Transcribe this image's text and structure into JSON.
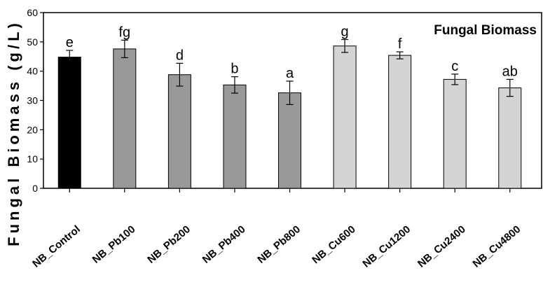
{
  "chart_data": {
    "type": "bar",
    "title": "Fungal Biomass",
    "ylabel": "Fungal Biomass (g/L)",
    "xlabel": "",
    "ylim": [
      0,
      60
    ],
    "yticks": [
      "0",
      "10",
      "20",
      "30",
      "40",
      "50",
      "60"
    ],
    "categories": [
      "NB_Control",
      "NB_Pb100",
      "NB_Pb200",
      "NB_Pb400",
      "NB_Pb800",
      "NB_Cu600",
      "NB_Cu1200",
      "NB_Cu2400",
      "NB_Cu4800"
    ],
    "values": [
      44.8,
      47.6,
      38.8,
      35.3,
      32.6,
      48.6,
      45.4,
      37.2,
      34.3
    ],
    "errors": [
      2.3,
      3.0,
      3.9,
      2.8,
      4.0,
      2.2,
      1.2,
      1.8,
      2.9
    ],
    "significance": [
      "e",
      "fg",
      "d",
      "b",
      "a",
      "g",
      "f",
      "c",
      "ab"
    ],
    "bar_colors": [
      "#000000",
      "#999999",
      "#999999",
      "#999999",
      "#999999",
      "#d4d4d4",
      "#d4d4d4",
      "#d4d4d4",
      "#d4d4d4"
    ],
    "grid": false,
    "legend": "none"
  }
}
